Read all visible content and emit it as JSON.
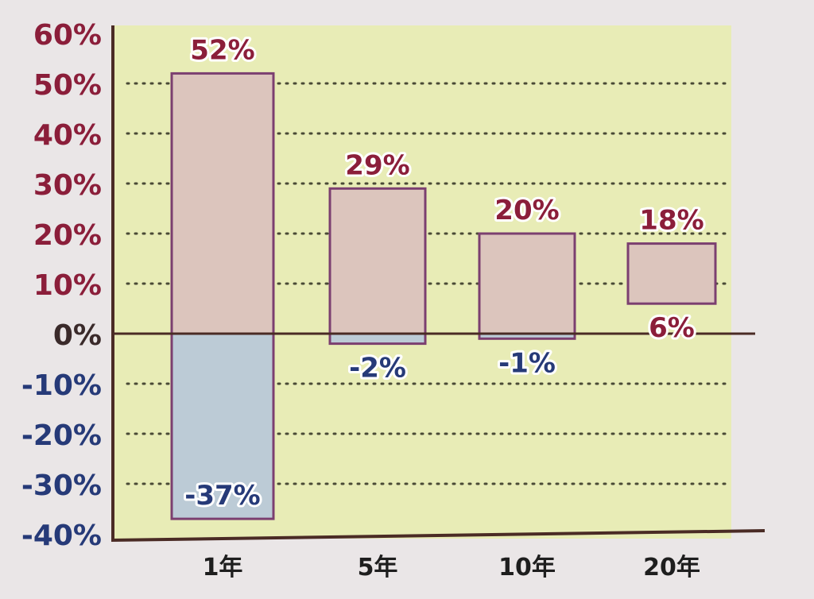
{
  "chart_data": {
    "type": "bar",
    "subtype": "floating-range",
    "categories": [
      "1年",
      "5年",
      "10年",
      "20年"
    ],
    "ranges": [
      {
        "category": "1年",
        "max": 52,
        "min": -37
      },
      {
        "category": "5年",
        "max": 29,
        "min": -2
      },
      {
        "category": "10年",
        "max": 20,
        "min": -1
      },
      {
        "category": "20年",
        "max": 18,
        "min": 6
      }
    ],
    "labels": {
      "max": [
        "52%",
        "29%",
        "20%",
        "18%"
      ],
      "min": [
        "-37%",
        "-2%",
        "-1%",
        "6%"
      ]
    },
    "y_ticks": [
      "60%",
      "50%",
      "40%",
      "30%",
      "20%",
      "10%",
      "0%",
      "-10%",
      "-20%",
      "-30%",
      "-40%"
    ],
    "ylim": [
      -40,
      60
    ],
    "grid": "dotted-horizontal",
    "legend": "none",
    "colors": {
      "plot_background": "#e8ecb6",
      "positive_fill": "#dcc5bd",
      "negative_fill": "#bccbd6",
      "bar_outline": "#7b3f70",
      "positive_text": "#8b1e3a",
      "negative_text": "#263a78",
      "zero_text": "#3a2a2a",
      "axis_line": "#4a2b25",
      "grid_dots": "#4a4a36"
    }
  }
}
